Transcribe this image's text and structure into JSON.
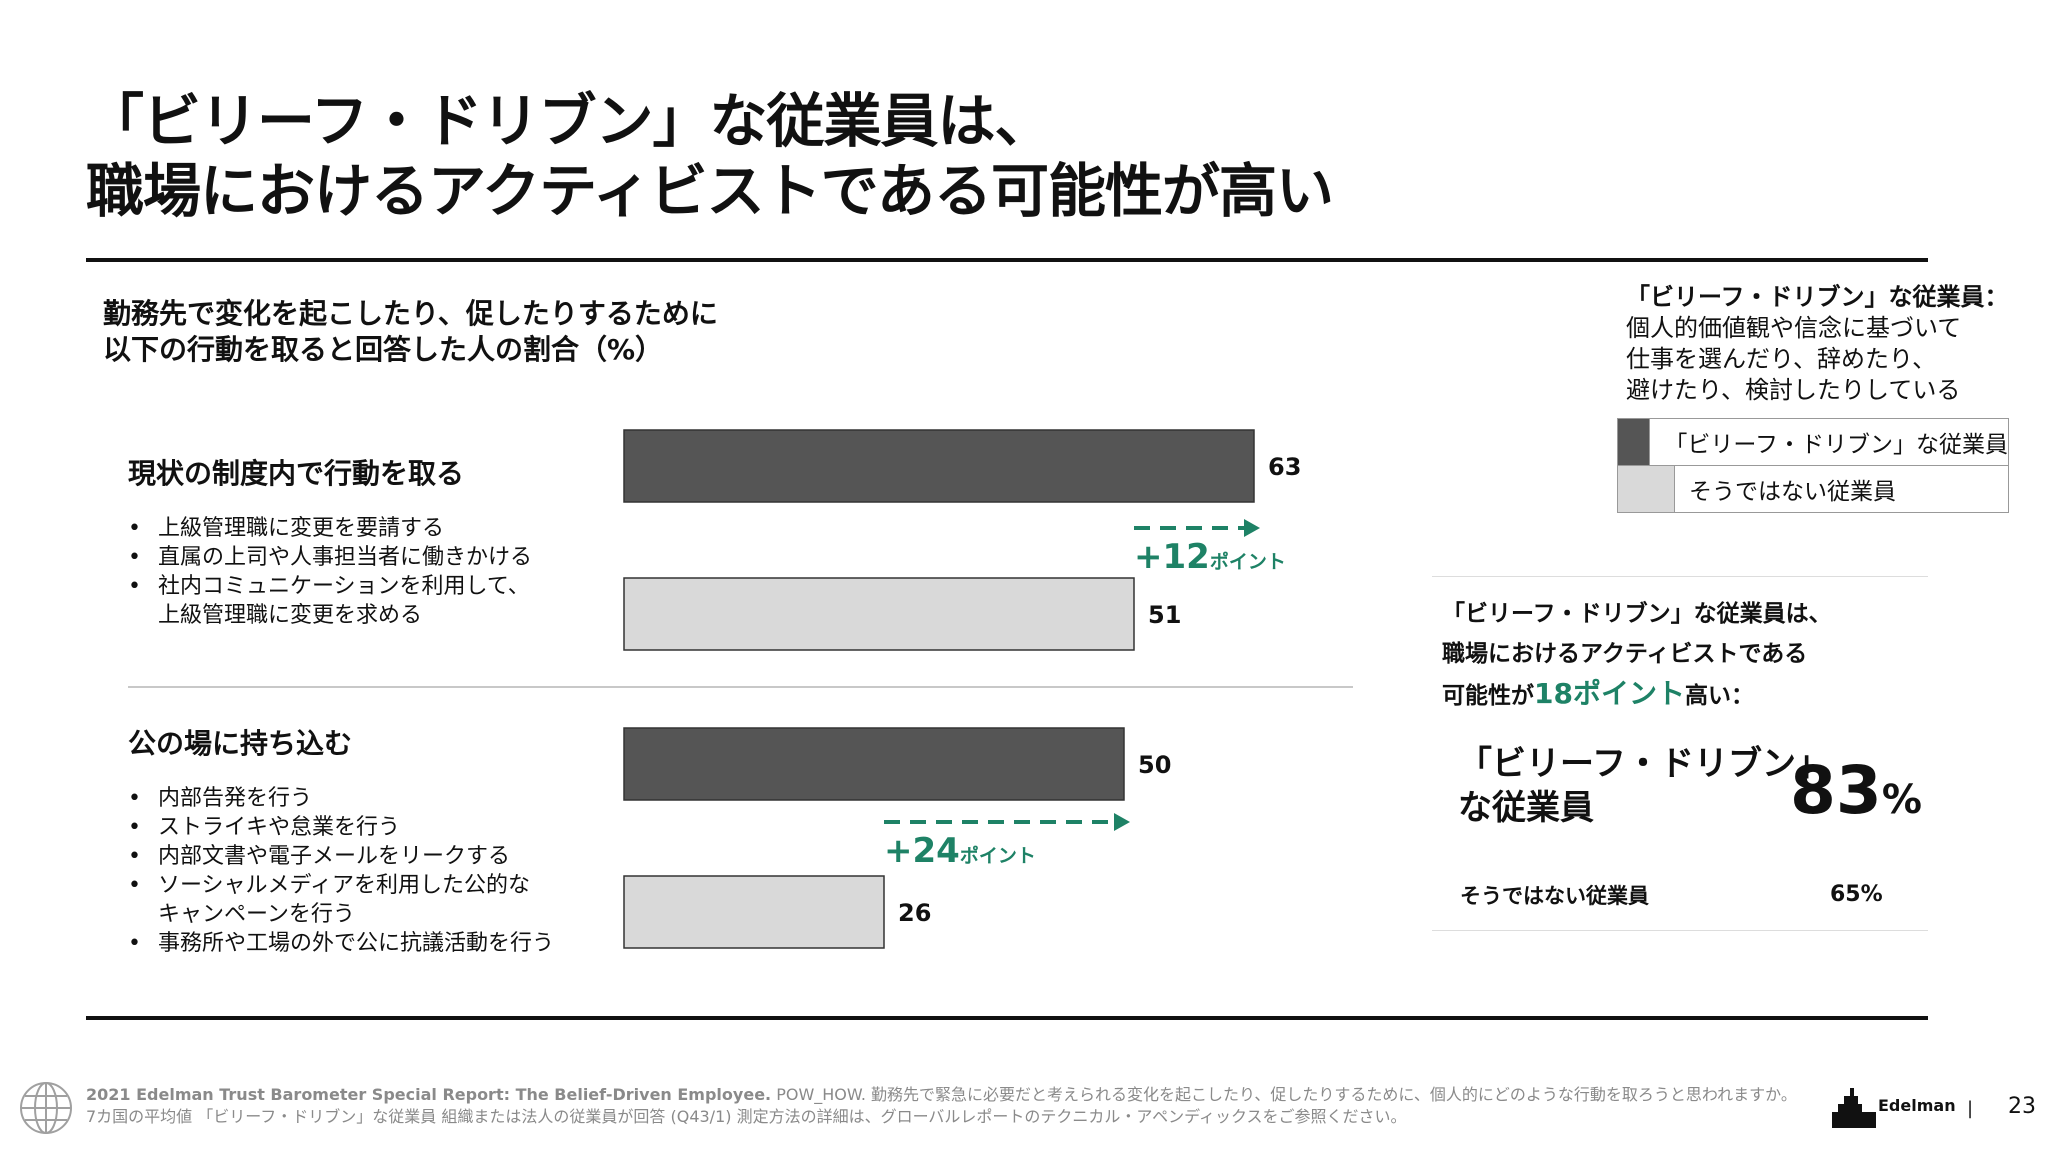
{
  "title": {
    "line1": "「ビリーフ・ドリブン」な従業員は、",
    "line2": "職場におけるアクティビストである可能性が高い"
  },
  "subtitle": {
    "line1": "勤務先で変化を起こしたり、促したりするために",
    "line2": "以下の行動を取ると回答した人の割合（%）"
  },
  "sections": [
    {
      "title": "現状の制度内で行動を取る",
      "bullets": [
        "上級管理職に変更を要請する",
        "直属の上司や人事担当者に働きかける",
        "社内コミュニケーションを利用して、\n上級管理職に変更を求める"
      ]
    },
    {
      "title": "公の場に持ち込む",
      "bullets": [
        "内部告発を行う",
        "ストライキや怠業を行う",
        "内部文書や電子メールをリークする",
        "ソーシャルメディアを利用した公的な\nキャンペーンを行う",
        "事務所や工場の外で公に抗議活動を行う"
      ]
    }
  ],
  "chart_data": {
    "type": "bar",
    "orientation": "horizontal",
    "categories": [
      "現状の制度内で行動を取る",
      "公の場に持ち込む"
    ],
    "series": [
      {
        "name": "「ビリーフ・ドリブン」な従業員",
        "values": [
          63,
          50
        ],
        "color": "#555555"
      },
      {
        "name": "そうではない従業員",
        "values": [
          51,
          26
        ],
        "color": "#d9d9d9"
      }
    ],
    "annotations": [
      {
        "number": "+12",
        "unit": "ポイント"
      },
      {
        "number": "+24",
        "unit": "ポイント"
      }
    ],
    "xlim": [
      0,
      63
    ],
    "grid": false,
    "legend_position": "top-right",
    "accent_color": "#1e8266"
  },
  "legend": {
    "title_bold": "「ビリーフ・ドリブン」な従業員：",
    "desc1": "個人的価値観や信念に基づいて",
    "desc2": "仕事を選んだり、辞めたり、",
    "desc3": "避けたり、検討したりしている",
    "items": [
      {
        "label": "「ビリーフ・ドリブン」な従業員",
        "color": "#555555"
      },
      {
        "label": "そうではない従業員",
        "color": "#d9d9d9"
      }
    ]
  },
  "callout": {
    "line1": "「ビリーフ・ドリブン」な従業員は、",
    "line2": "職場におけるアクティビストである",
    "line3_pre": "可能性が",
    "line3_pts": "18ポイント",
    "line3_post": "高い：",
    "main_label1": "「ビリーフ・ドリブン」",
    "main_label2": "な従業員",
    "main_value": "83",
    "main_unit": "%",
    "sub_label": "そうではない従業員",
    "sub_value": "65%"
  },
  "footer": {
    "line1_bold": "2021 Edelman Trust Barometer Special Report: The Belief-Driven Employee.",
    "line1_rest": " POW_HOW. 勤務先で緊急に必要だと考えられる変化を起こしたり、促したりするために、個人的にどのような行動を取ろうと思われますか。",
    "line2": "7カ国の平均値 「ビリーフ・ドリブン」な従業員 組織または法人の従業員が回答 (Q43/1) 測定方法の詳細は、グローバルレポートのテクニカル・アペンディックスをご参照ください。"
  },
  "brand": {
    "logo_text": "Edelman",
    "separator": "|",
    "page_number": "23"
  },
  "icons": {
    "globe": "globe-icon",
    "logo": "edelman-logo-icon"
  }
}
